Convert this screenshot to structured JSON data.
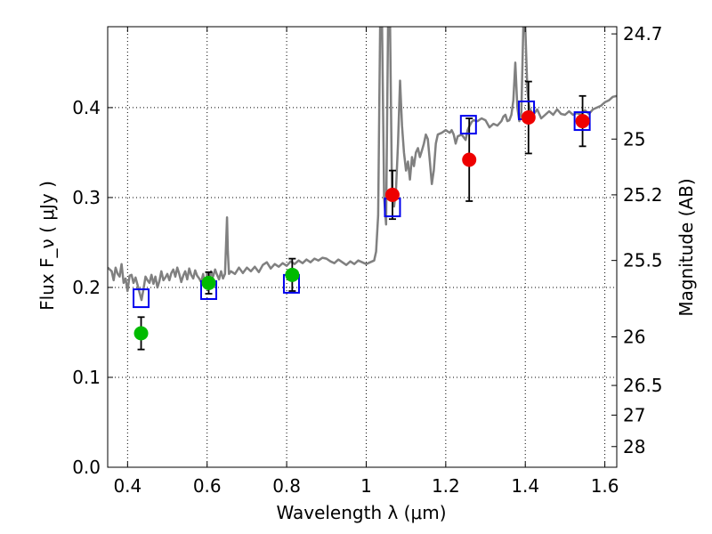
{
  "chart_data": {
    "type": "scatter",
    "title": "",
    "xlabel": "Wavelength  λ (μm)",
    "ylabel": "Flux  F_ν  ( μJy )",
    "ylabel_right": "Magnitude (AB)",
    "xlim": [
      0.35,
      1.63
    ],
    "ylim": [
      0.0,
      0.49
    ],
    "grid": true,
    "x_ticks": [
      0.4,
      0.6,
      0.8,
      1.0,
      1.2,
      1.4,
      1.6
    ],
    "x_tick_labels": [
      "0.4",
      "0.6",
      "0.8",
      "1",
      "1.2",
      "1.4",
      "1.6"
    ],
    "y_ticks": [
      0.0,
      0.1,
      0.2,
      0.3,
      0.4
    ],
    "y_tick_labels": [
      "0.0",
      "0.1",
      "0.2",
      "0.3",
      "0.4"
    ],
    "right_ticks": [
      {
        "label": "24.7",
        "flux": 0.482
      },
      {
        "label": "25",
        "flux": 0.365
      },
      {
        "label": "25.2",
        "flux": 0.303
      },
      {
        "label": "25.5",
        "flux": 0.23
      },
      {
        "label": "26",
        "flux": 0.145
      },
      {
        "label": "26.5",
        "flux": 0.091
      },
      {
        "label": "27",
        "flux": 0.058
      },
      {
        "label": "28",
        "flux": 0.023
      }
    ],
    "series": [
      {
        "kind": "line",
        "color": "#808080",
        "points": [
          [
            0.35,
            0.222
          ],
          [
            0.36,
            0.218
          ],
          [
            0.365,
            0.208
          ],
          [
            0.37,
            0.222
          ],
          [
            0.375,
            0.215
          ],
          [
            0.38,
            0.212
          ],
          [
            0.385,
            0.226
          ],
          [
            0.39,
            0.205
          ],
          [
            0.395,
            0.21
          ],
          [
            0.4,
            0.196
          ],
          [
            0.405,
            0.213
          ],
          [
            0.41,
            0.214
          ],
          [
            0.415,
            0.205
          ],
          [
            0.42,
            0.211
          ],
          [
            0.425,
            0.203
          ],
          [
            0.43,
            0.194
          ],
          [
            0.435,
            0.186
          ],
          [
            0.44,
            0.198
          ],
          [
            0.445,
            0.212
          ],
          [
            0.45,
            0.208
          ],
          [
            0.455,
            0.205
          ],
          [
            0.46,
            0.214
          ],
          [
            0.465,
            0.204
          ],
          [
            0.47,
            0.212
          ],
          [
            0.475,
            0.2
          ],
          [
            0.48,
            0.207
          ],
          [
            0.485,
            0.218
          ],
          [
            0.49,
            0.208
          ],
          [
            0.495,
            0.211
          ],
          [
            0.5,
            0.215
          ],
          [
            0.505,
            0.208
          ],
          [
            0.51,
            0.216
          ],
          [
            0.515,
            0.22
          ],
          [
            0.52,
            0.212
          ],
          [
            0.525,
            0.222
          ],
          [
            0.53,
            0.215
          ],
          [
            0.535,
            0.206
          ],
          [
            0.54,
            0.213
          ],
          [
            0.545,
            0.218
          ],
          [
            0.55,
            0.209
          ],
          [
            0.555,
            0.221
          ],
          [
            0.56,
            0.214
          ],
          [
            0.565,
            0.21
          ],
          [
            0.57,
            0.219
          ],
          [
            0.575,
            0.213
          ],
          [
            0.58,
            0.21
          ],
          [
            0.585,
            0.206
          ],
          [
            0.59,
            0.215
          ],
          [
            0.595,
            0.2
          ],
          [
            0.6,
            0.216
          ],
          [
            0.605,
            0.205
          ],
          [
            0.61,
            0.218
          ],
          [
            0.615,
            0.212
          ],
          [
            0.62,
            0.22
          ],
          [
            0.625,
            0.214
          ],
          [
            0.63,
            0.209
          ],
          [
            0.635,
            0.218
          ],
          [
            0.64,
            0.21
          ],
          [
            0.645,
            0.215
          ],
          [
            0.648,
            0.253
          ],
          [
            0.65,
            0.278
          ],
          [
            0.652,
            0.24
          ],
          [
            0.655,
            0.215
          ],
          [
            0.66,
            0.218
          ],
          [
            0.67,
            0.215
          ],
          [
            0.68,
            0.222
          ],
          [
            0.69,
            0.216
          ],
          [
            0.7,
            0.222
          ],
          [
            0.71,
            0.218
          ],
          [
            0.72,
            0.223
          ],
          [
            0.73,
            0.217
          ],
          [
            0.74,
            0.225
          ],
          [
            0.75,
            0.228
          ],
          [
            0.76,
            0.221
          ],
          [
            0.77,
            0.226
          ],
          [
            0.78,
            0.223
          ],
          [
            0.79,
            0.227
          ],
          [
            0.8,
            0.224
          ],
          [
            0.81,
            0.229
          ],
          [
            0.82,
            0.226
          ],
          [
            0.83,
            0.23
          ],
          [
            0.84,
            0.227
          ],
          [
            0.85,
            0.231
          ],
          [
            0.86,
            0.228
          ],
          [
            0.87,
            0.232
          ],
          [
            0.88,
            0.23
          ],
          [
            0.89,
            0.233
          ],
          [
            0.9,
            0.232
          ],
          [
            0.91,
            0.229
          ],
          [
            0.92,
            0.227
          ],
          [
            0.93,
            0.231
          ],
          [
            0.94,
            0.228
          ],
          [
            0.95,
            0.225
          ],
          [
            0.96,
            0.229
          ],
          [
            0.97,
            0.226
          ],
          [
            0.98,
            0.23
          ],
          [
            0.99,
            0.228
          ],
          [
            1.0,
            0.226
          ],
          [
            1.01,
            0.228
          ],
          [
            1.02,
            0.23
          ],
          [
            1.025,
            0.24
          ],
          [
            1.03,
            0.28
          ],
          [
            1.035,
            0.49
          ],
          [
            1.04,
            0.49
          ],
          [
            1.045,
            0.3
          ],
          [
            1.05,
            0.27
          ],
          [
            1.055,
            0.49
          ],
          [
            1.06,
            0.49
          ],
          [
            1.065,
            0.3
          ],
          [
            1.07,
            0.29
          ],
          [
            1.075,
            0.31
          ],
          [
            1.08,
            0.36
          ],
          [
            1.085,
            0.43
          ],
          [
            1.09,
            0.38
          ],
          [
            1.095,
            0.35
          ],
          [
            1.1,
            0.33
          ],
          [
            1.105,
            0.34
          ],
          [
            1.11,
            0.32
          ],
          [
            1.115,
            0.345
          ],
          [
            1.12,
            0.335
          ],
          [
            1.125,
            0.35
          ],
          [
            1.13,
            0.355
          ],
          [
            1.135,
            0.345
          ],
          [
            1.14,
            0.352
          ],
          [
            1.145,
            0.36
          ],
          [
            1.15,
            0.37
          ],
          [
            1.155,
            0.365
          ],
          [
            1.16,
            0.34
          ],
          [
            1.165,
            0.315
          ],
          [
            1.17,
            0.33
          ],
          [
            1.175,
            0.36
          ],
          [
            1.18,
            0.37
          ],
          [
            1.19,
            0.372
          ],
          [
            1.2,
            0.375
          ],
          [
            1.21,
            0.372
          ],
          [
            1.215,
            0.375
          ],
          [
            1.22,
            0.37
          ],
          [
            1.225,
            0.36
          ],
          [
            1.23,
            0.368
          ],
          [
            1.24,
            0.37
          ],
          [
            1.25,
            0.364
          ],
          [
            1.255,
            0.375
          ],
          [
            1.26,
            0.38
          ],
          [
            1.265,
            0.384
          ],
          [
            1.27,
            0.386
          ],
          [
            1.28,
            0.385
          ],
          [
            1.29,
            0.388
          ],
          [
            1.3,
            0.386
          ],
          [
            1.31,
            0.378
          ],
          [
            1.32,
            0.382
          ],
          [
            1.33,
            0.38
          ],
          [
            1.34,
            0.385
          ],
          [
            1.345,
            0.39
          ],
          [
            1.35,
            0.392
          ],
          [
            1.355,
            0.385
          ],
          [
            1.36,
            0.386
          ],
          [
            1.365,
            0.392
          ],
          [
            1.37,
            0.408
          ],
          [
            1.375,
            0.45
          ],
          [
            1.38,
            0.4
          ],
          [
            1.385,
            0.385
          ],
          [
            1.39,
            0.395
          ],
          [
            1.395,
            0.49
          ],
          [
            1.4,
            0.49
          ],
          [
            1.405,
            0.42
          ],
          [
            1.41,
            0.4
          ],
          [
            1.42,
            0.392
          ],
          [
            1.43,
            0.398
          ],
          [
            1.44,
            0.388
          ],
          [
            1.45,
            0.392
          ],
          [
            1.46,
            0.396
          ],
          [
            1.47,
            0.392
          ],
          [
            1.48,
            0.398
          ],
          [
            1.49,
            0.393
          ],
          [
            1.5,
            0.392
          ],
          [
            1.51,
            0.396
          ],
          [
            1.52,
            0.392
          ],
          [
            1.53,
            0.394
          ],
          [
            1.54,
            0.392
          ],
          [
            1.55,
            0.397
          ],
          [
            1.56,
            0.393
          ],
          [
            1.57,
            0.398
          ],
          [
            1.58,
            0.4
          ],
          [
            1.59,
            0.402
          ],
          [
            1.6,
            0.406
          ],
          [
            1.61,
            0.408
          ],
          [
            1.62,
            0.412
          ],
          [
            1.63,
            0.413
          ]
        ]
      },
      {
        "kind": "open-square",
        "color": "#0000ee",
        "points": [
          [
            0.434,
            0.188
          ],
          [
            0.604,
            0.197
          ],
          [
            0.812,
            0.204
          ],
          [
            1.066,
            0.289
          ],
          [
            1.257,
            0.381
          ],
          [
            1.403,
            0.397
          ],
          [
            1.543,
            0.385
          ]
        ]
      },
      {
        "kind": "filled-circle",
        "color": "#00bb00",
        "points": [
          {
            "x": 0.434,
            "y": 0.149,
            "err": 0.018
          },
          {
            "x": 0.604,
            "y": 0.205,
            "err": 0.012
          },
          {
            "x": 0.814,
            "y": 0.214,
            "err": 0.018
          }
        ]
      },
      {
        "kind": "filled-circle",
        "color": "#ee0000",
        "points": [
          {
            "x": 1.066,
            "y": 0.303,
            "err": 0.027
          },
          {
            "x": 1.259,
            "y": 0.342,
            "err": 0.046
          },
          {
            "x": 1.408,
            "y": 0.389,
            "err": 0.04
          },
          {
            "x": 1.544,
            "y": 0.385,
            "err": 0.028
          }
        ]
      }
    ]
  }
}
